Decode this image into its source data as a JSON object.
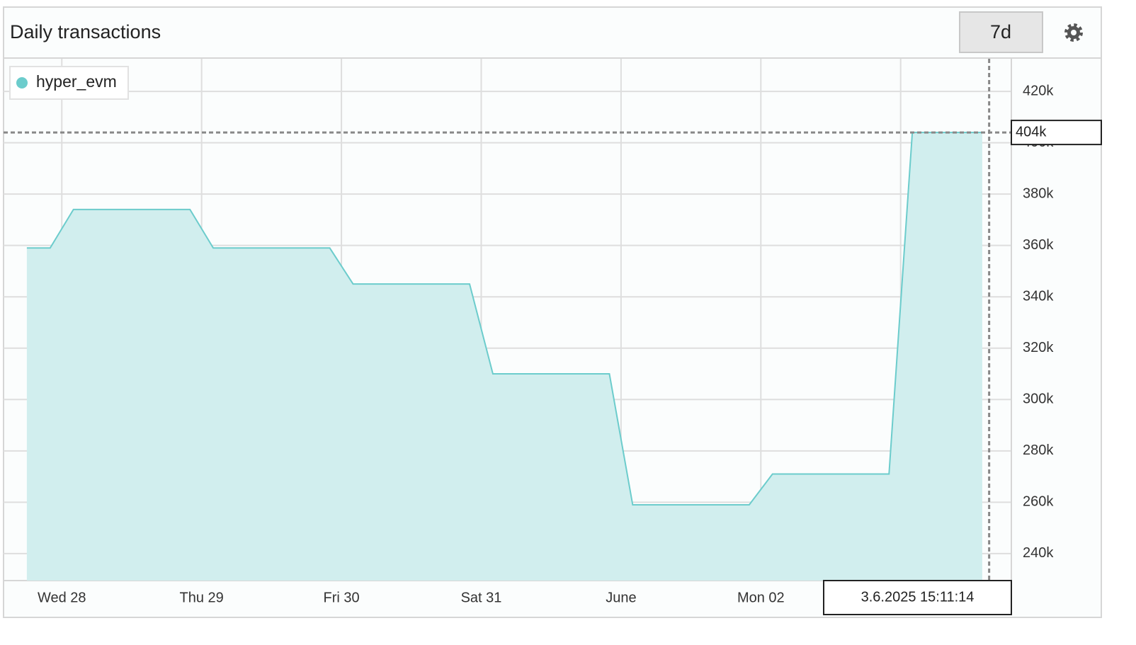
{
  "chart_data": {
    "type": "area",
    "title": "Daily transactions",
    "range_button": "7d",
    "x": [
      "2025-05-27T18:00",
      "2025-05-27T22:00",
      "2025-05-28T02:00",
      "2025-05-28T22:00",
      "2025-05-29T02:00",
      "2025-05-29T22:00",
      "2025-05-30T02:00",
      "2025-05-30T22:00",
      "2025-05-31T02:00",
      "2025-05-31T22:00",
      "2025-06-01T02:00",
      "2025-06-01T22:00",
      "2025-06-02T02:00",
      "2025-06-02T22:00",
      "2025-06-03T02:00",
      "2025-06-03T14:00"
    ],
    "series": [
      {
        "name": "hyper_evm",
        "color": "#6ccccc",
        "fill": "#d1eeee",
        "values": [
          359000,
          359000,
          374000,
          374000,
          359000,
          359000,
          345000,
          345000,
          310000,
          310000,
          259000,
          259000,
          271000,
          271000,
          404000,
          404000
        ]
      }
    ],
    "xlim": [
      "2025-05-27T14:00",
      "2025-06-03T19:00"
    ],
    "xticks": [
      {
        "value": "2025-05-28T00:00",
        "label": "Wed 28"
      },
      {
        "value": "2025-05-29T00:00",
        "label": "Thu 29"
      },
      {
        "value": "2025-05-30T00:00",
        "label": "Fri 30"
      },
      {
        "value": "2025-05-31T00:00",
        "label": "Sat 31"
      },
      {
        "value": "2025-06-01T00:00",
        "label": "June"
      },
      {
        "value": "2025-06-02T00:00",
        "label": "Mon 02"
      },
      {
        "value": "2025-06-03T00:00",
        "label": null
      }
    ],
    "ylim": [
      229500,
      432700
    ],
    "yticks": [
      {
        "value": 240000,
        "label": "240k"
      },
      {
        "value": 260000,
        "label": "260k"
      },
      {
        "value": 280000,
        "label": "280k"
      },
      {
        "value": 300000,
        "label": "300k"
      },
      {
        "value": 320000,
        "label": "320k"
      },
      {
        "value": 340000,
        "label": "340k"
      },
      {
        "value": 360000,
        "label": "360k"
      },
      {
        "value": 380000,
        "label": "380k"
      },
      {
        "value": 400000,
        "label": "400k"
      },
      {
        "value": 420000,
        "label": "420k"
      }
    ],
    "grid": true,
    "legend": "upper left",
    "crosshair": {
      "x": "2025-06-03T15:11:14",
      "x_label": "3.6.2025 15:11:14",
      "y": 404000,
      "y_label": "404k"
    }
  }
}
